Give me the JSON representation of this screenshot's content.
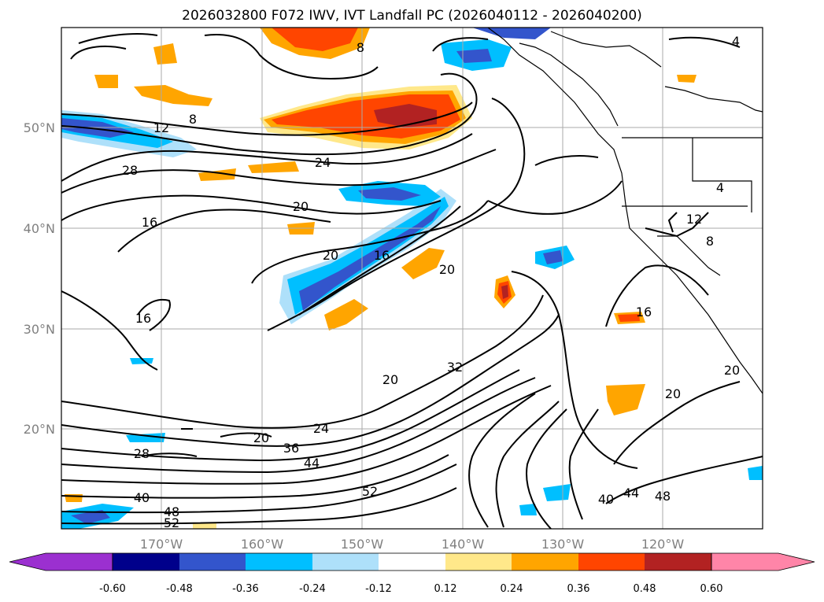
{
  "title": "2026032800 F072 IWV, IVT Landfall PC (2026040112 - 2026040200)",
  "lat_labels": [
    "50°N",
    "40°N",
    "30°N",
    "20°N"
  ],
  "lon_labels": [
    "170°W",
    "160°W",
    "150°W",
    "140°W",
    "130°W",
    "120°W"
  ],
  "contour_labels": [
    "8",
    "12",
    "24",
    "28",
    "20",
    "16",
    "20",
    "16",
    "20",
    "16",
    "32",
    "20",
    "24",
    "20",
    "28",
    "36",
    "44",
    "40",
    "48",
    "52",
    "52",
    "16",
    "20",
    "4",
    "12",
    "8",
    "40",
    "44",
    "48",
    "20",
    "8",
    "4"
  ],
  "colorbar": {
    "ticks": [
      "-0.60",
      "-0.48",
      "-0.36",
      "-0.24",
      "-0.12",
      "0.12",
      "0.24",
      "0.36",
      "0.48",
      "0.60"
    ],
    "colors": [
      "#9b30d0",
      "#00008b",
      "#3355cc",
      "#00bfff",
      "#aee0fa",
      "#ffffff",
      "#ffe88a",
      "#ffa500",
      "#ff4500",
      "#b22222",
      "#ff85a8"
    ]
  }
}
